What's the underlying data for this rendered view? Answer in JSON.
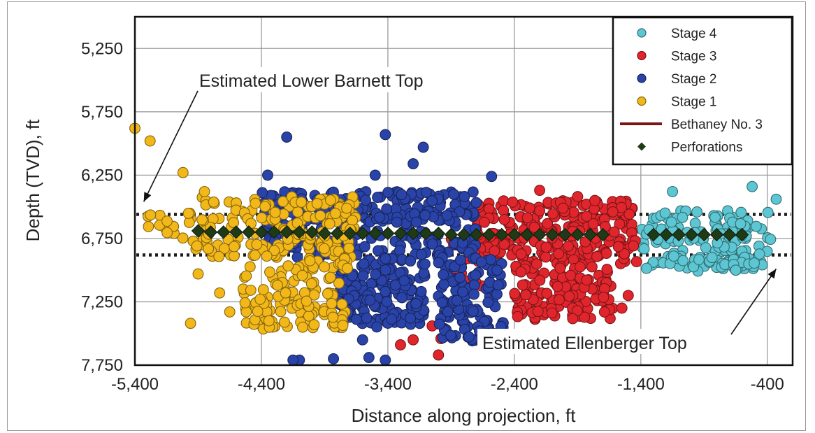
{
  "chart_data": {
    "type": "scatter",
    "xlabel": "Distance along projection, ft",
    "ylabel": "Depth (TVD), ft",
    "xlim": [
      -5400,
      -200
    ],
    "ylim": [
      7750,
      5000
    ],
    "y_inverted": true,
    "grid": true,
    "legend_position": "top-right",
    "x_ticks": [
      -5400,
      -4400,
      -3400,
      -2400,
      -1400,
      -400
    ],
    "x_tick_labels": [
      "-5,400",
      "-4,400",
      "-3,400",
      "-2,400",
      "-1,400",
      "-400"
    ],
    "y_ticks": [
      5250,
      5750,
      6250,
      6750,
      7250,
      7750
    ],
    "y_tick_labels": [
      "5,250",
      "5,750",
      "6,250",
      "6,750",
      "7,250",
      "7,750"
    ],
    "series": [
      {
        "name": "Stage 4",
        "color": "#5cc6d2",
        "clusters": [
          {
            "x": [
              -1400,
              -370
            ],
            "y": [
              6530,
              6990
            ],
            "n": 150
          },
          {
            "x": [
              -1000,
              -500
            ],
            "y": [
              6900,
              7010
            ],
            "n": 20
          }
        ],
        "points": [
          {
            "x": -1150,
            "y": 6380
          },
          {
            "x": -520,
            "y": 6340
          },
          {
            "x": -330,
            "y": 6440
          },
          {
            "x": -650,
            "y": 7000
          }
        ]
      },
      {
        "name": "Stage 3",
        "color": "#e0262c",
        "clusters": [
          {
            "x": [
              -2700,
              -1420
            ],
            "y": [
              6450,
              6950
            ],
            "n": 230
          },
          {
            "x": [
              -2400,
              -1620
            ],
            "y": [
              6950,
              7400
            ],
            "n": 130
          },
          {
            "x": [
              -2950,
              -2650
            ],
            "y": [
              6700,
              7150
            ],
            "n": 20
          }
        ],
        "points": [
          {
            "x": -2200,
            "y": 6370
          },
          {
            "x": -1900,
            "y": 6420
          },
          {
            "x": -3300,
            "y": 7390
          },
          {
            "x": -3300,
            "y": 7590
          },
          {
            "x": -3000,
            "y": 7670
          },
          {
            "x": -2980,
            "y": 7540
          },
          {
            "x": -3200,
            "y": 7550
          },
          {
            "x": -3050,
            "y": 7440
          },
          {
            "x": -1500,
            "y": 7200
          },
          {
            "x": -1550,
            "y": 7300
          }
        ]
      },
      {
        "name": "Stage 2",
        "color": "#2a43a8",
        "clusters": [
          {
            "x": [
              -4400,
              -2700
            ],
            "y": [
              6380,
              6900
            ],
            "n": 280
          },
          {
            "x": [
              -3800,
              -3100
            ],
            "y": [
              6900,
              7450
            ],
            "n": 170
          },
          {
            "x": [
              -3000,
              -2480
            ],
            "y": [
              6900,
              7560
            ],
            "n": 120
          }
        ],
        "points": [
          {
            "x": -4200,
            "y": 5950
          },
          {
            "x": -4350,
            "y": 6250
          },
          {
            "x": -3420,
            "y": 5930
          },
          {
            "x": -3120,
            "y": 6030
          },
          {
            "x": -3200,
            "y": 6160
          },
          {
            "x": -2580,
            "y": 6260
          },
          {
            "x": -3500,
            "y": 6250
          },
          {
            "x": -4100,
            "y": 7710
          },
          {
            "x": -4150,
            "y": 7710
          },
          {
            "x": -3830,
            "y": 7700
          },
          {
            "x": -3550,
            "y": 7690
          },
          {
            "x": -3420,
            "y": 7710
          },
          {
            "x": -3780,
            "y": 7450
          },
          {
            "x": -3600,
            "y": 7550
          }
        ]
      },
      {
        "name": "Stage 1",
        "color": "#f2b81a",
        "clusters": [
          {
            "x": [
              -4950,
              -3650
            ],
            "y": [
              6420,
              6900
            ],
            "n": 160
          },
          {
            "x": [
              -4550,
              -3720
            ],
            "y": [
              6900,
              7470
            ],
            "n": 130
          },
          {
            "x": [
              -5300,
              -4950
            ],
            "y": [
              6550,
              6800
            ],
            "n": 15
          }
        ],
        "points": [
          {
            "x": -5400,
            "y": 5880
          },
          {
            "x": -5280,
            "y": 5980
          },
          {
            "x": -5020,
            "y": 6230
          },
          {
            "x": -4850,
            "y": 6380
          },
          {
            "x": -4900,
            "y": 7030
          },
          {
            "x": -4730,
            "y": 7180
          },
          {
            "x": -4960,
            "y": 7420
          },
          {
            "x": -4650,
            "y": 7330
          }
        ]
      },
      {
        "name": "Bethaney No. 3",
        "color": "#7a1616",
        "type": "line"
      },
      {
        "name": "Perforations",
        "color": "#1f3a16",
        "marker": "diamond",
        "x": [
          -4900,
          -4800,
          -4700,
          -4600,
          -4500,
          -4400,
          -4300,
          -4200,
          -4100,
          -4000,
          -3900,
          -3800,
          -3700,
          -3600,
          -3500,
          -3400,
          -3300,
          -3200,
          -3100,
          -3000,
          -2900,
          -2800,
          -2700,
          -2600,
          -2500,
          -2400,
          -2300,
          -2200,
          -2100,
          -2000,
          -1900,
          -1800,
          -1700,
          -1300,
          -1200,
          -1100,
          -1000,
          -900,
          -800,
          -700,
          -600
        ],
        "y": [
          6690,
          6700,
          6700,
          6700,
          6700,
          6700,
          6700,
          6700,
          6700,
          6700,
          6710,
          6710,
          6710,
          6710,
          6710,
          6710,
          6710,
          6710,
          6710,
          6710,
          6720,
          6720,
          6720,
          6720,
          6720,
          6720,
          6720,
          6720,
          6720,
          6720,
          6720,
          6720,
          6720,
          6720,
          6720,
          6720,
          6720,
          6720,
          6720,
          6720,
          6720
        ]
      }
    ],
    "reference_lines": [
      {
        "label": "Estimated Lower Barnett Top",
        "y": 6560,
        "style": "dotted"
      },
      {
        "label": "Estimated Ellenberger Top",
        "y": 6880,
        "style": "dotted"
      }
    ],
    "annotations": [
      {
        "text": "Estimated Lower Barnett Top",
        "points_to": {
          "x": -5330,
          "y": 6460
        }
      },
      {
        "text": "Estimated Ellenberger Top",
        "points_to": {
          "x": -330,
          "y": 6990
        }
      }
    ]
  },
  "colors": {
    "grid": "#9c9c9c",
    "axes": "#111111",
    "refline": "#1c1c1c"
  }
}
